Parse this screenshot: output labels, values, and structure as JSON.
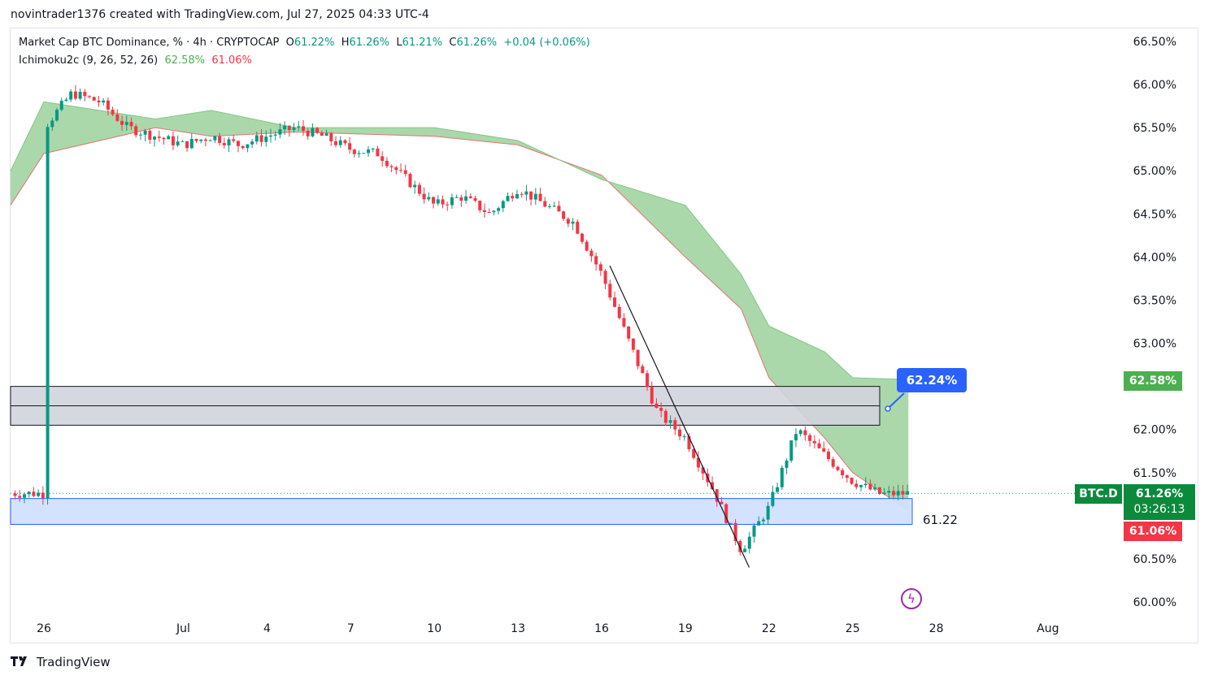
{
  "header": {
    "text": "novintrader1376 created with TradingView.com, Jul 27, 2025 04:33 UTC-4"
  },
  "legend": {
    "symbol": "Market Cap BTC Dominance, % · 4h · CRYPTOCAP",
    "o_label": "O",
    "o_val": "61.22%",
    "h_label": "H",
    "h_val": "61.26%",
    "l_label": "L",
    "l_val": "61.21%",
    "c_label": "C",
    "c_val": "61.26%",
    "change": "+0.04 (+0.06%)",
    "ichimoku": "Ichimoku2c (9, 26, 52, 26)",
    "ichi_a": "62.58%",
    "ichi_b": "61.06%"
  },
  "labels": {
    "price_tag": "62.24%",
    "zone_value": "61.22",
    "symbol_tag": "BTC.D",
    "last_price": "61.26%",
    "countdown": "03:26:13",
    "span_a": "62.58%",
    "span_b": "61.06%"
  },
  "footer": {
    "brand": "TradingView"
  },
  "colors": {
    "up": "#089981",
    "down": "#f23645",
    "cloud": "#a5d6a7",
    "zone_gray": "#d1d4dc",
    "zone_blue": "#d1e0ff",
    "tag_blue": "#2962ff"
  },
  "chart_data": {
    "type": "candlestick",
    "title": "Market Cap BTC Dominance, % · 4h · CRYPTOCAP",
    "y_axis": {
      "ticks": [
        "66.50%",
        "66.00%",
        "65.50%",
        "65.00%",
        "64.50%",
        "64.00%",
        "63.50%",
        "63.00%",
        "62.00%",
        "61.50%",
        "60.50%",
        "60.00%"
      ],
      "range": [
        59.85,
        66.65
      ]
    },
    "x_axis": {
      "ticks": [
        "26",
        "Jul",
        "4",
        "7",
        "10",
        "13",
        "16",
        "19",
        "22",
        "25",
        "28",
        "Aug"
      ]
    },
    "close_path": [
      [
        "Jun 26",
        65.5
      ],
      [
        "Jun 27",
        65.9
      ],
      [
        "Jun 28",
        65.8
      ],
      [
        "Jun 29",
        65.5
      ],
      [
        "Jun 30",
        65.4
      ],
      [
        "Jul 1",
        65.3
      ],
      [
        "Jul 2",
        65.4
      ],
      [
        "Jul 3",
        65.3
      ],
      [
        "Jul 4",
        65.4
      ],
      [
        "Jul 5",
        65.5
      ],
      [
        "Jul 6",
        65.4
      ],
      [
        "Jul 7",
        65.25
      ],
      [
        "Jul 8",
        65.2
      ],
      [
        "Jul 9",
        64.9
      ],
      [
        "Jul 10",
        64.6
      ],
      [
        "Jul 11",
        64.7
      ],
      [
        "Jul 12",
        64.5
      ],
      [
        "Jul 13",
        64.8
      ],
      [
        "Jul 14",
        64.6
      ],
      [
        "Jul 15",
        64.4
      ],
      [
        "Jul 16",
        63.8
      ],
      [
        "Jul 17",
        63.0
      ],
      [
        "Jul 18",
        62.2
      ],
      [
        "Jul 19",
        61.9
      ],
      [
        "Jul 20",
        61.3
      ],
      [
        "Jul 21",
        60.6
      ],
      [
        "Jul 22",
        61.1
      ],
      [
        "Jul 23",
        62.0
      ],
      [
        "Jul 24",
        61.7
      ],
      [
        "Jul 25",
        61.4
      ],
      [
        "Jul 26",
        61.25
      ],
      [
        "Jul 27",
        61.26
      ]
    ],
    "ohlc_last": {
      "open": 61.22,
      "high": 61.26,
      "low": 61.21,
      "close": 61.26
    },
    "ichimoku": {
      "params": "9, 26, 52, 26",
      "span_a_last": 62.58,
      "span_b_last": 61.06,
      "cloud_upper": [
        [
          "Jun 24",
          65.0
        ],
        [
          "Jun 26",
          65.8
        ],
        [
          "Jun 30",
          65.6
        ],
        [
          "Jul 2",
          65.7
        ],
        [
          "Jul 5",
          65.5
        ],
        [
          "Jul 10",
          65.5
        ],
        [
          "Jul 13",
          65.35
        ],
        [
          "Jul 16",
          64.9
        ],
        [
          "Jul 19",
          64.6
        ],
        [
          "Jul 21",
          63.8
        ],
        [
          "Jul 22",
          63.2
        ],
        [
          "Jul 24",
          62.9
        ],
        [
          "Jul 25",
          62.6
        ],
        [
          "Jul 27",
          62.58
        ]
      ],
      "cloud_lower": [
        [
          "Jun 24",
          64.6
        ],
        [
          "Jun 26",
          65.2
        ],
        [
          "Jun 30",
          65.5
        ],
        [
          "Jul 2",
          65.4
        ],
        [
          "Jul 5",
          65.45
        ],
        [
          "Jul 10",
          65.4
        ],
        [
          "Jul 13",
          65.3
        ],
        [
          "Jul 16",
          64.95
        ],
        [
          "Jul 19",
          64.0
        ],
        [
          "Jul 21",
          63.4
        ],
        [
          "Jul 22",
          62.6
        ],
        [
          "Jul 24",
          61.9
        ],
        [
          "Jul 25",
          61.5
        ],
        [
          "Jul 27",
          61.06
        ]
      ]
    },
    "zones": [
      {
        "name": "resistance",
        "from": 62.05,
        "to": 62.5
      },
      {
        "name": "support",
        "from": 60.9,
        "to": 61.2,
        "label": "61.22"
      }
    ],
    "trendline": {
      "from": [
        "Jul 16",
        63.9
      ],
      "to": [
        "Jul 21",
        60.4
      ]
    },
    "grid": false
  }
}
